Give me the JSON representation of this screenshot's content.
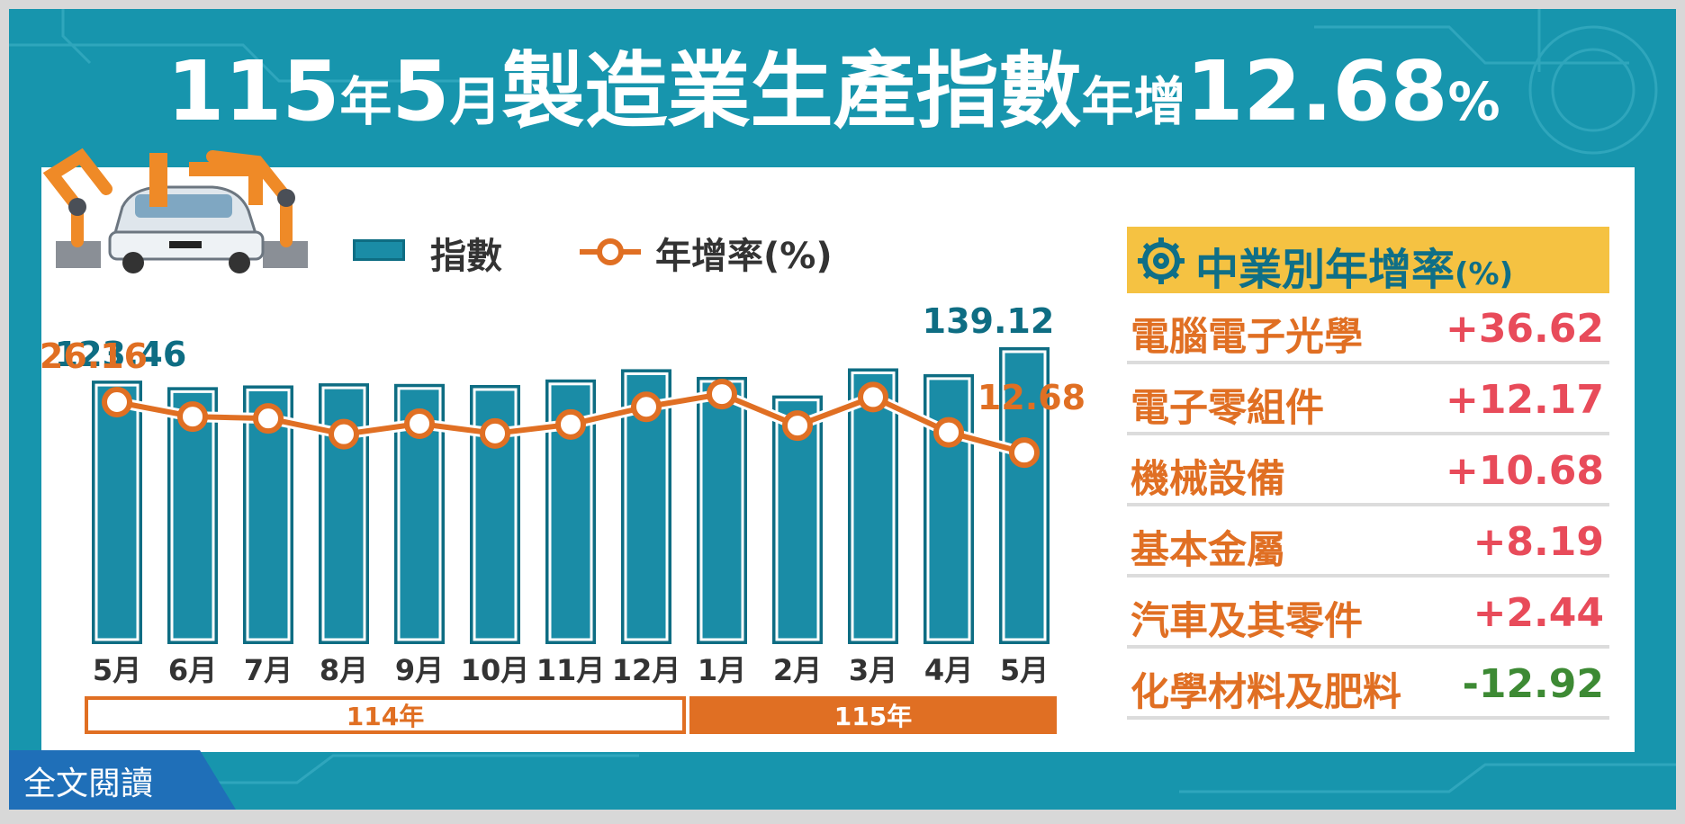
{
  "title": {
    "year": "115",
    "year_unit": "年",
    "month": "5",
    "month_unit": "月",
    "subject": "製造業生產指數",
    "growth_label": "年增",
    "growth_value": "12.68",
    "percent": "%"
  },
  "legend": {
    "index_label": "指數",
    "rate_label": "年增率(%)"
  },
  "chart_data": {
    "type": "bar",
    "categories": [
      "5月",
      "6月",
      "7月",
      "8月",
      "9月",
      "10月",
      "11月",
      "12月",
      "1月",
      "2月",
      "3月",
      "4月",
      "5月"
    ],
    "year_groups": [
      {
        "label": "114年",
        "count": 8
      },
      {
        "label": "115年",
        "count": 5
      }
    ],
    "series": [
      {
        "name": "指數",
        "type": "bar",
        "values": [
          123.46,
          120.4,
          121.2,
          122.2,
          121.9,
          121.4,
          124.0,
          128.8,
          125.2,
          116.5,
          129.2,
          126.5,
          139.12
        ]
      },
      {
        "name": "年增率(%)",
        "type": "line",
        "values": [
          26.16,
          22.3,
          21.8,
          17.6,
          20.4,
          17.8,
          20.2,
          24.9,
          28.3,
          19.9,
          27.5,
          18.1,
          12.68
        ]
      }
    ],
    "labeled_points": {
      "bar_first": "123.46",
      "bar_last": "139.12",
      "rate_first": "26.16",
      "rate_last": "12.68"
    },
    "bar_ylim": [
      0,
      145
    ],
    "rate_ylim": [
      0,
      48
    ]
  },
  "industry": {
    "heading": "中業別年增率",
    "heading_unit": "(%)",
    "rows": [
      {
        "name": "電腦電子光學",
        "value": "+36.62"
      },
      {
        "name": "電子零組件",
        "value": "+12.17"
      },
      {
        "name": "機械設備",
        "value": "+10.68"
      },
      {
        "name": "基本金屬",
        "value": "+8.19"
      },
      {
        "name": "汽車及其零件",
        "value": "+2.44"
      },
      {
        "name": "化學材料及肥料",
        "value": "-12.92"
      }
    ]
  },
  "read_more": {
    "label": "全文閱讀"
  },
  "colors": {
    "bar": "#1a8ca6",
    "bar_border": "#0e6d83",
    "line": "#e06f23",
    "positive": "#e84b5a",
    "negative": "#3d8a34",
    "accent": "#1795ad"
  }
}
